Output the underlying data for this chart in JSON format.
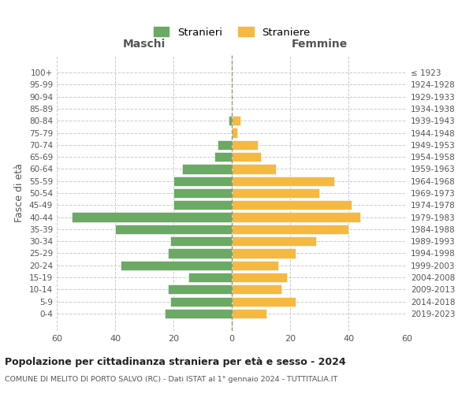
{
  "age_groups": [
    "100+",
    "95-99",
    "90-94",
    "85-89",
    "80-84",
    "75-79",
    "70-74",
    "65-69",
    "60-64",
    "55-59",
    "50-54",
    "45-49",
    "40-44",
    "35-39",
    "30-34",
    "25-29",
    "20-24",
    "15-19",
    "10-14",
    "5-9",
    "0-4"
  ],
  "birth_years": [
    "≤ 1923",
    "1924-1928",
    "1929-1933",
    "1934-1938",
    "1939-1943",
    "1944-1948",
    "1949-1953",
    "1954-1958",
    "1959-1963",
    "1964-1968",
    "1969-1973",
    "1974-1978",
    "1979-1983",
    "1984-1988",
    "1989-1993",
    "1994-1998",
    "1999-2003",
    "2004-2008",
    "2009-2013",
    "2014-2018",
    "2019-2023"
  ],
  "males": [
    0,
    0,
    0,
    0,
    1,
    0,
    5,
    6,
    17,
    20,
    20,
    20,
    55,
    40,
    21,
    22,
    38,
    15,
    22,
    21,
    23
  ],
  "females": [
    0,
    0,
    0,
    0,
    3,
    2,
    9,
    10,
    15,
    35,
    30,
    41,
    44,
    40,
    29,
    22,
    16,
    19,
    17,
    22,
    12
  ],
  "male_color": "#6aaa64",
  "female_color": "#f5b942",
  "title": "Popolazione per cittadinanza straniera per età e sesso - 2024",
  "subtitle": "COMUNE DI MELITO DI PORTO SALVO (RC) - Dati ISTAT al 1° gennaio 2024 - TUTTITALIA.IT",
  "xlabel_left": "Maschi",
  "xlabel_right": "Femmine",
  "ylabel_left": "Fasce di età",
  "legend_male": "Stranieri",
  "legend_female": "Straniere",
  "xlim": 60,
  "background_color": "#ffffff",
  "grid_color": "#cccccc"
}
